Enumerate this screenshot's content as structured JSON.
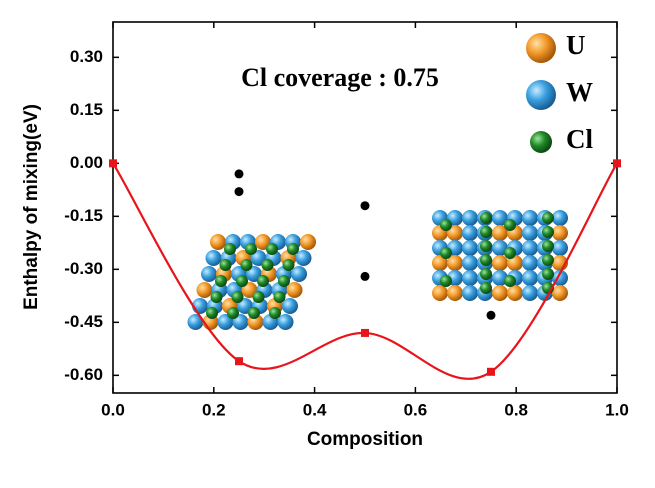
{
  "chart_data": {
    "type": "line",
    "annotation": "Cl coverage : 0.75",
    "xlabel": "Composition",
    "ylabel": "Enthalpy of mixing(eV)",
    "x": [
      0,
      0.25,
      0.5,
      0.75,
      1
    ],
    "series": [
      {
        "color": "#e8141b",
        "values": [
          0,
          -0.56,
          -0.48,
          -0.59,
          0
        ]
      }
    ],
    "points": {
      "color": "#000000",
      "x": [
        0.25,
        0.25,
        0.5,
        0.5,
        0.75
      ],
      "values": [
        -0.03,
        -0.08,
        -0.12,
        -0.32,
        -0.43
      ]
    },
    "xlim": [
      0,
      1
    ],
    "ylim": [
      -0.65,
      0.4
    ],
    "xticks": [
      {
        "value": 0,
        "label": "0.0"
      },
      0.2,
      0.4,
      0.6,
      0.8,
      {
        "value": 1,
        "label": "1.0"
      }
    ],
    "yticks": [
      {
        "value": 0.3,
        "label": "0.30"
      },
      {
        "value": 0.15,
        "label": "0.15"
      },
      {
        "value": 0,
        "label": "0.00"
      },
      {
        "value": -0.15,
        "label": "-0.15"
      },
      {
        "value": -0.3,
        "label": "-0.30"
      },
      {
        "value": -0.45,
        "label": "-0.45"
      },
      {
        "value": -0.6,
        "label": "-0.60"
      }
    ],
    "legend": [
      {
        "label": "U",
        "color": "#f39a2a"
      },
      {
        "label": "W",
        "color": "#3aa0e0"
      },
      {
        "label": "Cl",
        "color": "#1f8a2a"
      }
    ]
  }
}
